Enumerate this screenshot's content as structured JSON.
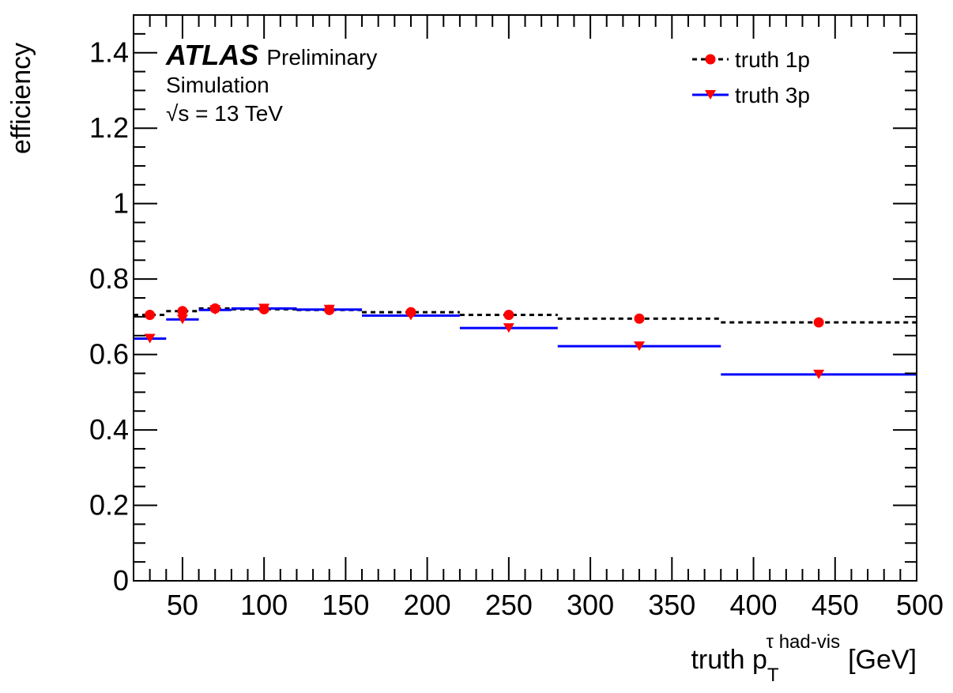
{
  "chart_data": {
    "type": "scatter",
    "xlabel": {
      "main": "truth p",
      "sub": "T",
      "sup": "τ had-vis",
      "unit": "[GeV]"
    },
    "ylabel": "efficiency",
    "xlim": [
      20,
      500
    ],
    "ylim": [
      0,
      1.5
    ],
    "x_ticks": [
      50,
      100,
      150,
      200,
      250,
      300,
      350,
      400,
      450,
      500
    ],
    "y_ticks": [
      {
        "v": 0,
        "label": "0"
      },
      {
        "v": 0.2,
        "label": "0.2"
      },
      {
        "v": 0.4,
        "label": "0.4"
      },
      {
        "v": 0.6,
        "label": "0.6"
      },
      {
        "v": 0.8,
        "label": "0.8"
      },
      {
        "v": 1.0,
        "label": "1"
      },
      {
        "v": 1.2,
        "label": "1.2"
      },
      {
        "v": 1.4,
        "label": "1.4"
      }
    ],
    "bin_edges": [
      20,
      40,
      60,
      80,
      120,
      160,
      220,
      280,
      380,
      500
    ],
    "series": [
      {
        "name": "truth 1p",
        "color": "#000000",
        "marker": "circle",
        "marker_color": "#ff0000",
        "line": "dashed",
        "x": [
          30,
          50,
          70,
          100,
          140,
          190,
          250,
          330,
          440
        ],
        "y": [
          0.705,
          0.715,
          0.722,
          0.72,
          0.718,
          0.712,
          0.705,
          0.695,
          0.685
        ]
      },
      {
        "name": "truth 3p",
        "color": "#0000ff",
        "marker": "triangle-down",
        "marker_color": "#ff0000",
        "line": "solid",
        "x": [
          30,
          50,
          70,
          100,
          140,
          190,
          250,
          330,
          440
        ],
        "y": [
          0.642,
          0.693,
          0.718,
          0.722,
          0.719,
          0.703,
          0.67,
          0.622,
          0.547
        ]
      }
    ],
    "legend_position": "top-right",
    "grid": false
  },
  "annotation": {
    "atlas": "ATLAS",
    "preliminary": "Preliminary",
    "simulation": "Simulation",
    "energy": "√s = 13 TeV"
  }
}
